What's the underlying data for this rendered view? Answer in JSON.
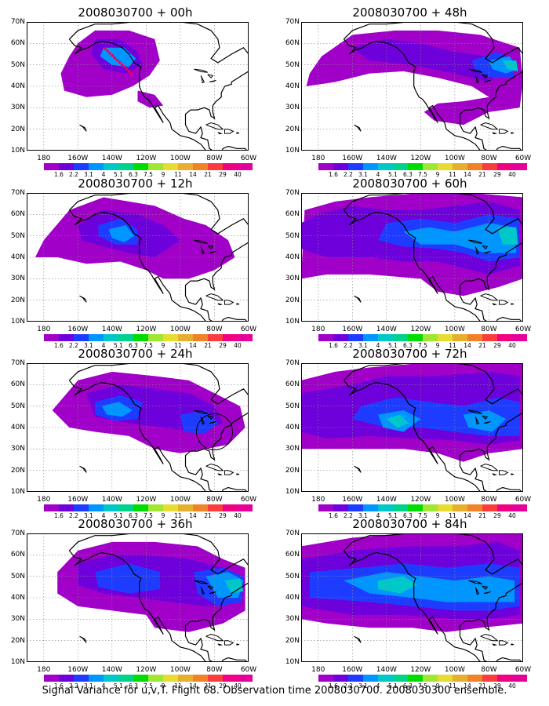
{
  "panels": [
    {
      "title": "2008030700 + 00h"
    },
    {
      "title": "2008030700 + 48h"
    },
    {
      "title": "2008030700 + 12h"
    },
    {
      "title": "2008030700 + 60h"
    },
    {
      "title": "2008030700 + 24h"
    },
    {
      "title": "2008030700 + 72h"
    },
    {
      "title": "2008030700 + 36h"
    },
    {
      "title": "2008030700 + 84h"
    }
  ],
  "axes": {
    "y_labels": [
      "70N",
      "60N",
      "50N",
      "40N",
      "30N",
      "20N",
      "10N"
    ],
    "x_labels": [
      "180",
      "160W",
      "140W",
      "120W",
      "100W",
      "80W",
      "60W"
    ]
  },
  "colorbar": {
    "labels": [
      "1.6",
      "2.2",
      "3.1",
      "4",
      "5.1",
      "6.3",
      "7.5",
      "9",
      "11",
      "14",
      "21",
      "29",
      "40"
    ],
    "colors": [
      "#a000c8",
      "#6e00dc",
      "#1e3cff",
      "#0096ff",
      "#00c8c8",
      "#00d28c",
      "#00dc00",
      "#a0e632",
      "#e6dc32",
      "#e6af2d",
      "#f08228",
      "#fa3c3c",
      "#f00082"
    ]
  },
  "footer": "Signal Variance for u,v,T. Flight 68. Observation time 2008030700. 2008030300 ensemble."
}
